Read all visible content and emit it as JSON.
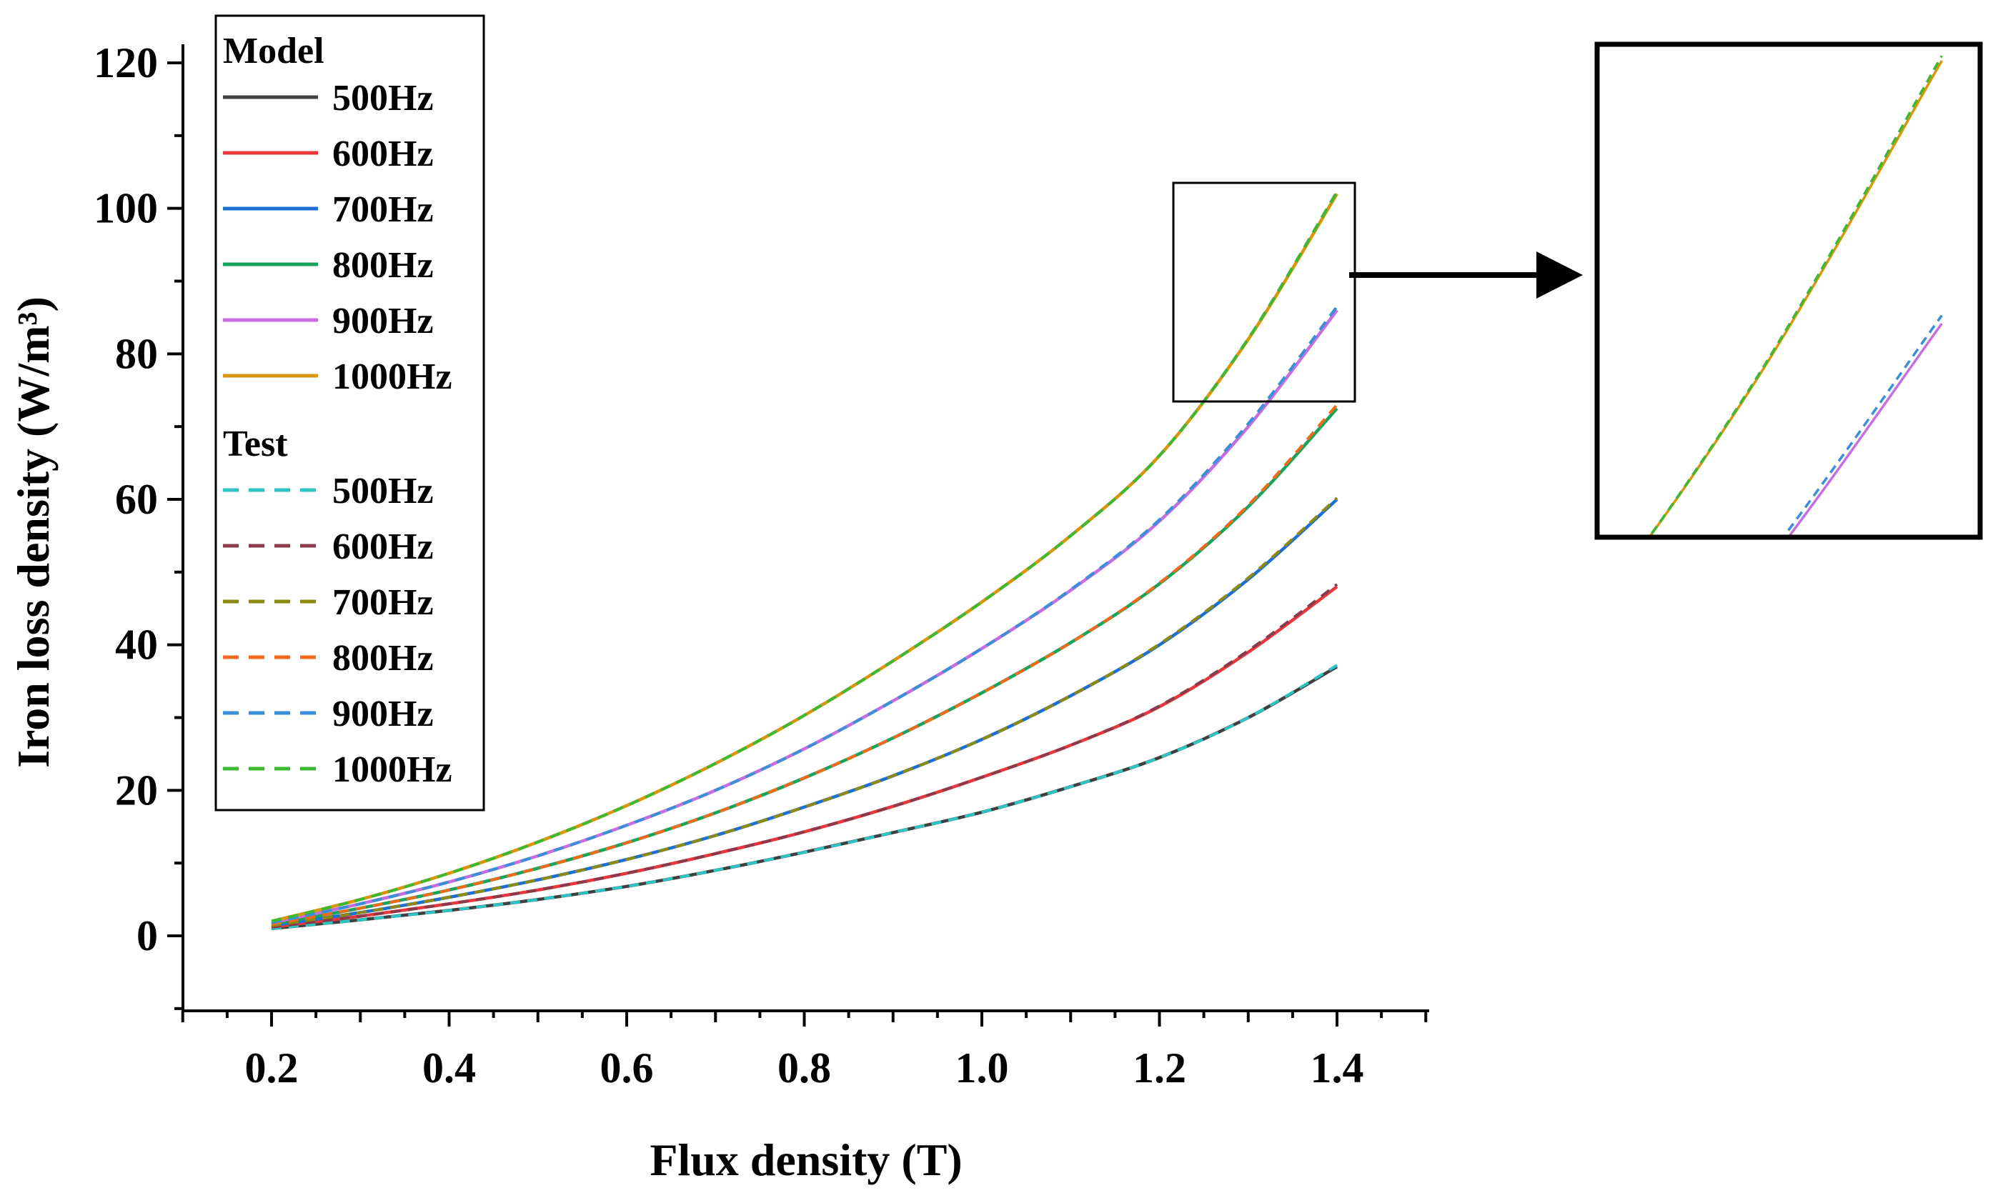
{
  "chart_data": {
    "type": "line",
    "xlabel": "Flux density (T)",
    "ylabel": "Iron loss density (W/m³)",
    "xlim": [
      0.1,
      1.5
    ],
    "ylim": [
      -10,
      122
    ],
    "xticks": [
      "0.2",
      "0.4",
      "0.6",
      "0.8",
      "1.0",
      "1.2",
      "1.4"
    ],
    "yticks": [
      "0",
      "20",
      "40",
      "60",
      "80",
      "100",
      "120"
    ],
    "x": [
      0.2,
      0.3,
      0.4,
      0.5,
      0.6,
      0.7,
      0.8,
      0.9,
      1.0,
      1.1,
      1.2,
      1.3,
      1.4
    ],
    "legend": {
      "group_model": "Model",
      "group_test": "Test",
      "placement": "top-left"
    },
    "series": [
      {
        "name": "500Hz",
        "group": "Model",
        "style": "solid",
        "color": "#404040",
        "values": [
          1.0,
          2.2,
          3.5,
          5.0,
          6.8,
          9.0,
          11.5,
          14.2,
          17.0,
          20.5,
          24.5,
          30.0,
          37.0
        ]
      },
      {
        "name": "600Hz",
        "group": "Model",
        "style": "solid",
        "color": "#e8383d",
        "values": [
          1.2,
          2.7,
          4.4,
          6.3,
          8.6,
          11.3,
          14.3,
          17.8,
          21.8,
          26.2,
          31.5,
          39.0,
          48.0
        ]
      },
      {
        "name": "700Hz",
        "group": "Model",
        "style": "solid",
        "color": "#1f6fd1",
        "values": [
          1.4,
          3.2,
          5.3,
          7.7,
          10.5,
          13.8,
          17.7,
          22.0,
          27.0,
          33.0,
          40.0,
          49.0,
          60.0
        ]
      },
      {
        "name": "800Hz",
        "group": "Model",
        "style": "solid",
        "color": "#1aa35a",
        "values": [
          1.6,
          3.8,
          6.3,
          9.3,
          12.8,
          16.9,
          21.7,
          27.2,
          33.4,
          40.3,
          48.4,
          59.0,
          72.5
        ]
      },
      {
        "name": "900Hz",
        "group": "Model",
        "style": "solid",
        "color": "#c46ee0",
        "values": [
          1.8,
          4.4,
          7.4,
          11.0,
          15.2,
          20.0,
          25.7,
          32.3,
          39.5,
          47.5,
          57.0,
          70.0,
          86.0
        ]
      },
      {
        "name": "1000Hz",
        "group": "Model",
        "style": "solid",
        "color": "#d8960c",
        "values": [
          2.0,
          5.0,
          8.6,
          12.9,
          17.9,
          23.7,
          30.3,
          37.8,
          45.9,
          55.0,
          66.0,
          82.0,
          102.0
        ]
      },
      {
        "name": "500Hz",
        "group": "Test",
        "style": "dashed",
        "color": "#2ec4c4",
        "values": [
          1.0,
          2.2,
          3.5,
          5.0,
          6.8,
          9.0,
          11.5,
          14.2,
          17.0,
          20.5,
          24.5,
          30.0,
          37.2
        ]
      },
      {
        "name": "600Hz",
        "group": "Test",
        "style": "dashed",
        "color": "#8a3a4a",
        "values": [
          1.2,
          2.7,
          4.4,
          6.3,
          8.6,
          11.3,
          14.3,
          17.8,
          21.8,
          26.2,
          31.6,
          39.2,
          48.3
        ]
      },
      {
        "name": "700Hz",
        "group": "Test",
        "style": "dashed",
        "color": "#8c8a10",
        "values": [
          1.4,
          3.2,
          5.3,
          7.7,
          10.5,
          13.8,
          17.7,
          22.0,
          27.0,
          33.0,
          40.1,
          49.2,
          60.2
        ]
      },
      {
        "name": "800Hz",
        "group": "Test",
        "style": "dashed",
        "color": "#f26b1d",
        "values": [
          1.6,
          3.8,
          6.3,
          9.3,
          12.8,
          16.9,
          21.7,
          27.2,
          33.4,
          40.3,
          48.5,
          59.2,
          73.0
        ]
      },
      {
        "name": "900Hz",
        "group": "Test",
        "style": "dashed",
        "color": "#3a8fd6",
        "values": [
          1.8,
          4.4,
          7.4,
          11.0,
          15.2,
          20.0,
          25.7,
          32.3,
          39.5,
          47.6,
          57.2,
          70.4,
          86.5
        ]
      },
      {
        "name": "1000Hz",
        "group": "Test",
        "style": "dashed",
        "color": "#3cb832",
        "values": [
          2.0,
          5.0,
          8.6,
          12.9,
          17.9,
          23.7,
          30.3,
          37.8,
          45.9,
          55.0,
          66.0,
          82.1,
          102.3
        ]
      }
    ],
    "inset": {
      "type": "zoom",
      "xlim": [
        1.22,
        1.42
      ],
      "ylim": [
        73,
        103
      ],
      "series": [
        "1000Hz",
        "900Hz"
      ]
    }
  }
}
